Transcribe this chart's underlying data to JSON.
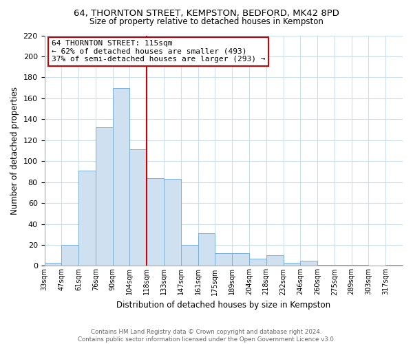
{
  "title": "64, THORNTON STREET, KEMPSTON, BEDFORD, MK42 8PD",
  "subtitle": "Size of property relative to detached houses in Kempston",
  "xlabel": "Distribution of detached houses by size in Kempston",
  "ylabel": "Number of detached properties",
  "bar_color": "#cfe0f0",
  "bar_edge_color": "#7ab0d8",
  "bin_labels": [
    "33sqm",
    "47sqm",
    "61sqm",
    "76sqm",
    "90sqm",
    "104sqm",
    "118sqm",
    "133sqm",
    "147sqm",
    "161sqm",
    "175sqm",
    "189sqm",
    "204sqm",
    "218sqm",
    "232sqm",
    "246sqm",
    "260sqm",
    "275sqm",
    "289sqm",
    "303sqm",
    "317sqm"
  ],
  "bar_heights": [
    3,
    20,
    91,
    132,
    170,
    111,
    84,
    83,
    20,
    31,
    12,
    12,
    7,
    10,
    3,
    5,
    1,
    1,
    1,
    0,
    1
  ],
  "ylim": [
    0,
    220
  ],
  "yticks": [
    0,
    20,
    40,
    60,
    80,
    100,
    120,
    140,
    160,
    180,
    200,
    220
  ],
  "property_line_x": 6,
  "property_line_color": "#cc0000",
  "annotation_title": "64 THORNTON STREET: 115sqm",
  "annotation_line1": "← 62% of detached houses are smaller (493)",
  "annotation_line2": "37% of semi-detached houses are larger (293) →",
  "footer_line1": "Contains HM Land Registry data © Crown copyright and database right 2024.",
  "footer_line2": "Contains public sector information licensed under the Open Government Licence v3.0.",
  "background_color": "#ffffff",
  "grid_color": "#ccddee"
}
